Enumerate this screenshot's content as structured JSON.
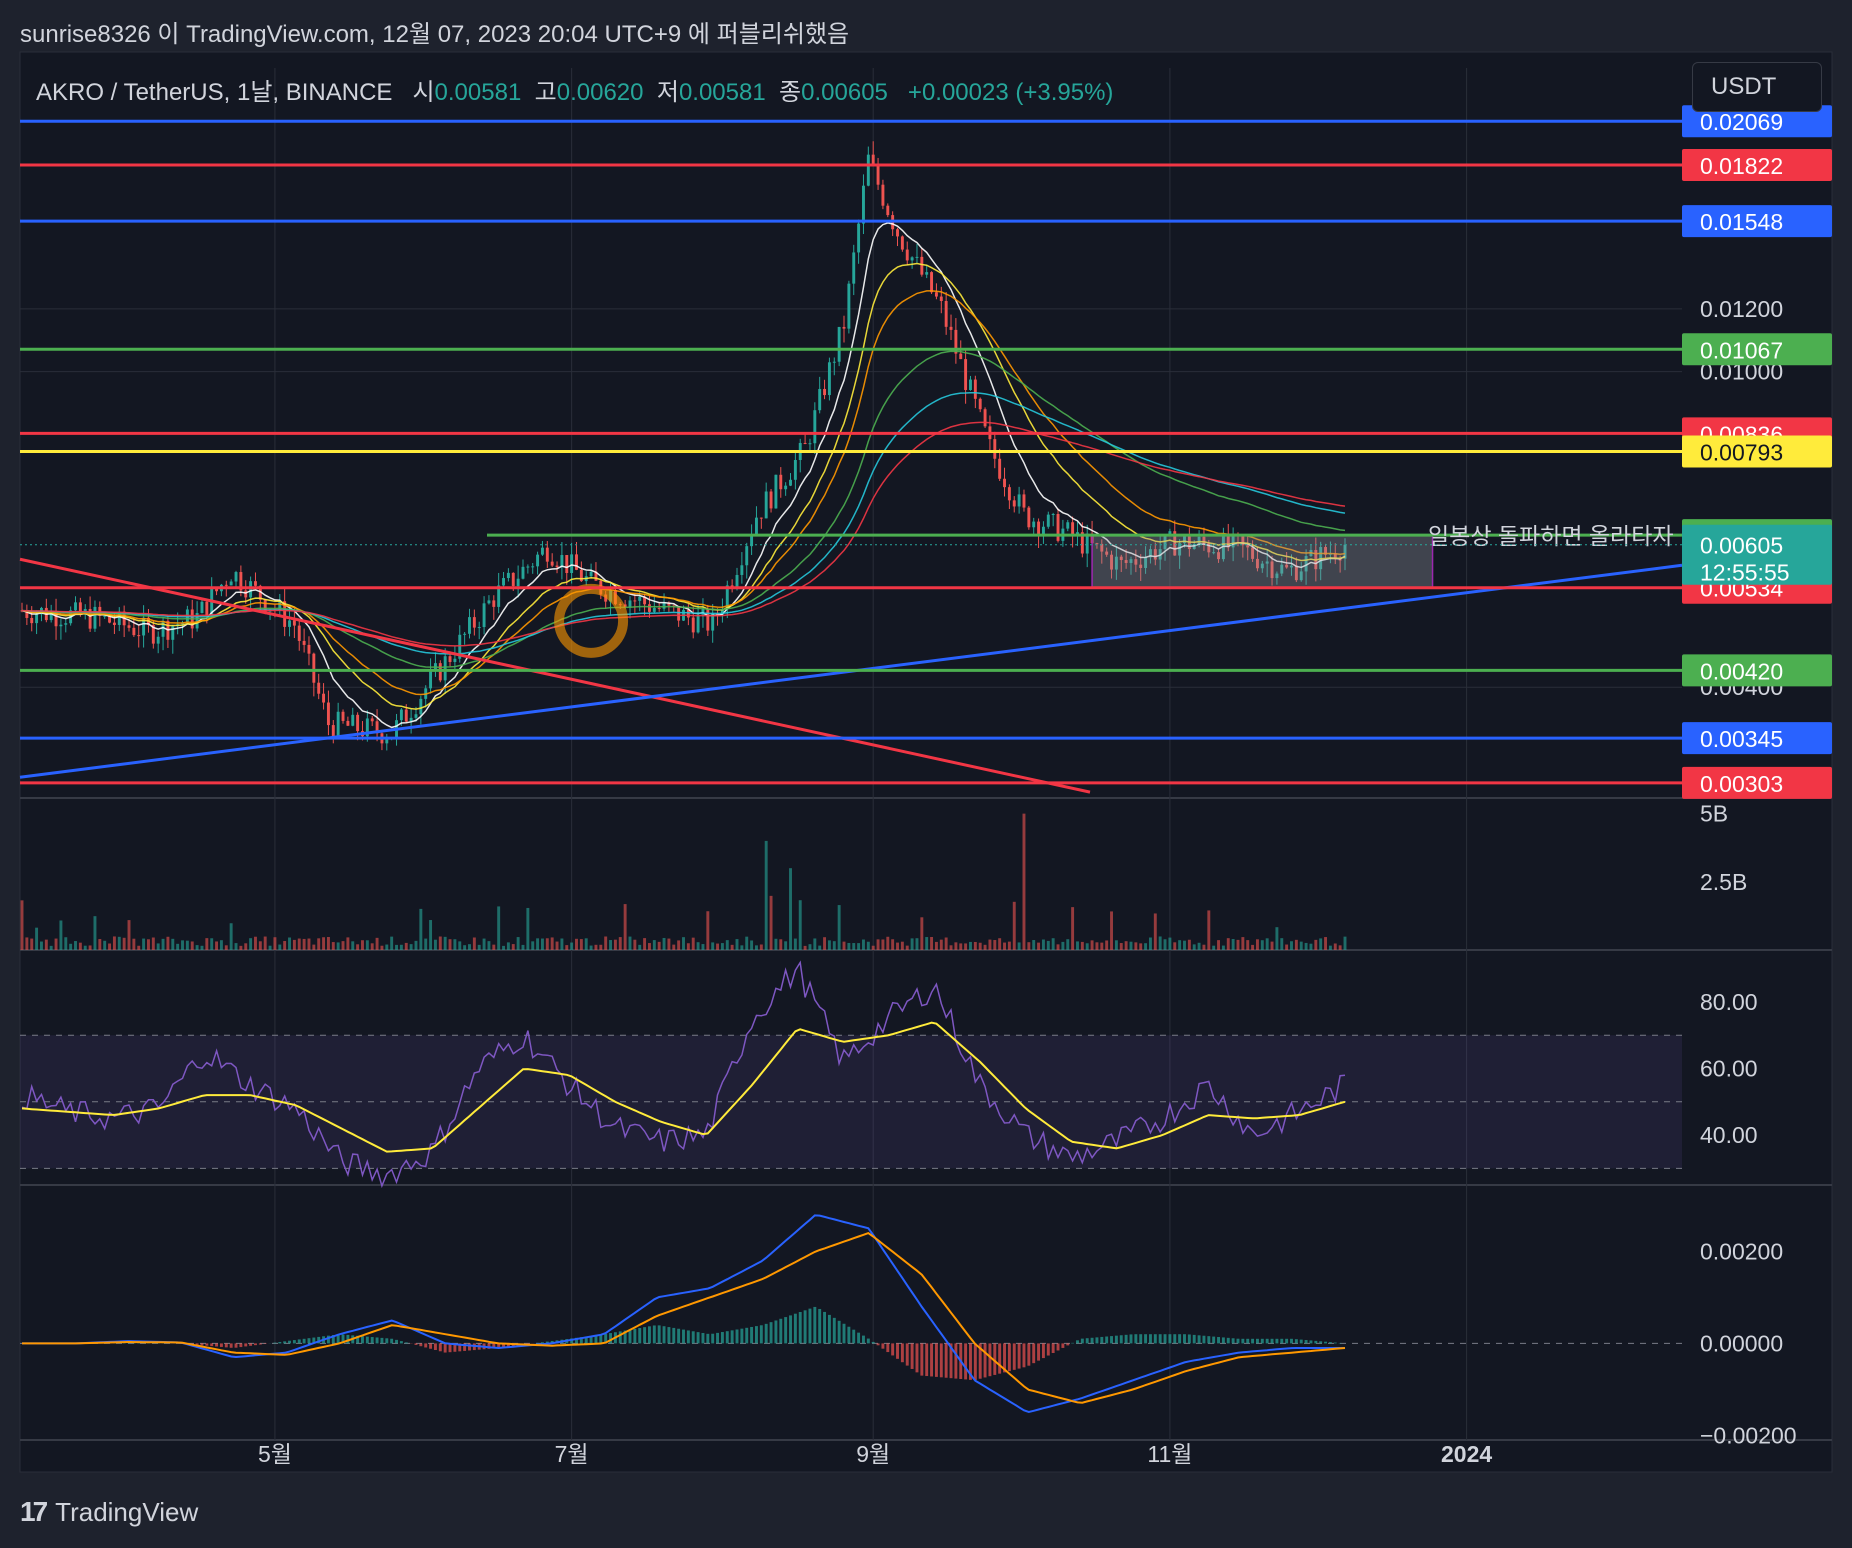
{
  "header": {
    "publish_text": "sunrise8326 이 TradingView.com, 12월 07, 2023 20:04 UTC+9 에 퍼블리쉬했음",
    "symbol": "AKRO / TetherUS, 1날, BINANCE",
    "open_label": "시",
    "open_value": "0.00581",
    "high_label": "고",
    "high_value": "0.00620",
    "low_label": "저",
    "low_value": "0.00581",
    "close_label": "종",
    "close_value": "0.00605",
    "change": "+0.00023 (+3.95%)",
    "currency_button": "USDT"
  },
  "footer": {
    "brand": "TradingView"
  },
  "colors": {
    "background": "#131722",
    "panel": "#1e222d",
    "grid": "#2a2e39",
    "up": "#26a69a",
    "down": "#ef5350",
    "red_line": "#f23645",
    "blue_line": "#2962ff",
    "green_line": "#4caf50",
    "yellow_line": "#ffeb3b"
  },
  "chart_data": [
    {
      "type": "candlestick",
      "panel": "price",
      "scale": "log",
      "ylim": [
        0.0029,
        0.0215
      ],
      "x_ticks": [
        "5월",
        "7월",
        "9월",
        "11월",
        "2024"
      ],
      "y_ticks": [
        "0.01200",
        "0.01000",
        "0.00400"
      ],
      "current_price": "0.00605",
      "countdown": "12:55:55",
      "horizontal_levels": [
        {
          "value": 0.02069,
          "label": "0.02069",
          "color": "#2962ff"
        },
        {
          "value": 0.01822,
          "label": "0.01822",
          "color": "#f23645"
        },
        {
          "value": 0.01548,
          "label": "0.01548",
          "color": "#2962ff"
        },
        {
          "value": 0.01067,
          "label": "0.01067",
          "color": "#4caf50"
        },
        {
          "value": 0.00836,
          "label": "0.00836",
          "color": "#f23645"
        },
        {
          "value": 0.00793,
          "label": "0.00793",
          "color": "#ffeb3b"
        },
        {
          "value": 0.00622,
          "label": "0.00622",
          "color": "#4caf50"
        },
        {
          "value": 0.00534,
          "label": "0.00534",
          "color": "#f23645"
        },
        {
          "value": 0.0042,
          "label": "0.00420",
          "color": "#4caf50"
        },
        {
          "value": 0.00345,
          "label": "0.00345",
          "color": "#2962ff"
        },
        {
          "value": 0.00303,
          "label": "0.00303",
          "color": "#f23645"
        }
      ],
      "annotation": "일봉상 돌파하면 올라타자",
      "close_path": [
        {
          "date": "2023-03-10",
          "close": 0.005
        },
        {
          "date": "2023-03-25",
          "close": 0.0049
        },
        {
          "date": "2023-04-05",
          "close": 0.0047
        },
        {
          "date": "2023-04-15",
          "close": 0.0049
        },
        {
          "date": "2023-04-22",
          "close": 0.0056
        },
        {
          "date": "2023-05-05",
          "close": 0.0048
        },
        {
          "date": "2023-05-12",
          "close": 0.0036
        },
        {
          "date": "2023-05-25",
          "close": 0.0035
        },
        {
          "date": "2023-06-05",
          "close": 0.0043
        },
        {
          "date": "2023-06-15",
          "close": 0.0052
        },
        {
          "date": "2023-06-26",
          "close": 0.006
        },
        {
          "date": "2023-07-05",
          "close": 0.0054
        },
        {
          "date": "2023-07-20",
          "close": 0.005
        },
        {
          "date": "2023-07-30",
          "close": 0.0048
        },
        {
          "date": "2023-08-08",
          "close": 0.0066
        },
        {
          "date": "2023-08-18",
          "close": 0.008
        },
        {
          "date": "2023-08-26",
          "close": 0.0115
        },
        {
          "date": "2023-08-31",
          "close": 0.0185
        },
        {
          "date": "2023-09-06",
          "close": 0.015
        },
        {
          "date": "2023-09-15",
          "close": 0.012
        },
        {
          "date": "2023-09-25",
          "close": 0.008
        },
        {
          "date": "2023-10-02",
          "close": 0.0066
        },
        {
          "date": "2023-10-10",
          "close": 0.0063
        },
        {
          "date": "2023-10-22",
          "close": 0.0057
        },
        {
          "date": "2023-11-02",
          "close": 0.0061
        },
        {
          "date": "2023-11-15",
          "close": 0.006
        },
        {
          "date": "2023-11-25",
          "close": 0.0056
        },
        {
          "date": "2023-12-07",
          "close": 0.00605
        }
      ]
    },
    {
      "type": "bar",
      "panel": "volume",
      "y_ticks": [
        "5B",
        "2.5B"
      ],
      "ylim": [
        0,
        5.5
      ],
      "unit": "B",
      "spikes": [
        {
          "date": "2023-08-10",
          "value": 4.0
        },
        {
          "date": "2023-08-15",
          "value": 3.0
        },
        {
          "date": "2023-10-02",
          "value": 5.0
        }
      ]
    },
    {
      "type": "line",
      "panel": "rsi",
      "ylim": [
        25,
        95
      ],
      "y_ticks": [
        "80.00",
        "60.00",
        "40.00"
      ],
      "bands": [
        70,
        50,
        30
      ],
      "series": [
        {
          "color": "#7e57c2",
          "values": [
            52,
            47,
            45,
            48,
            65,
            55,
            48,
            32,
            28,
            35,
            60,
            70,
            55,
            42,
            38,
            40,
            75,
            90,
            62,
            75,
            85,
            55,
            40,
            33,
            38,
            45,
            55,
            40,
            47,
            55
          ]
        },
        {
          "color": "#ffeb3b",
          "values": [
            48,
            47,
            46,
            48,
            52,
            52,
            49,
            42,
            35,
            36,
            48,
            60,
            58,
            50,
            44,
            40,
            55,
            72,
            68,
            70,
            74,
            62,
            48,
            38,
            36,
            40,
            46,
            45,
            46,
            50
          ]
        }
      ]
    },
    {
      "type": "line",
      "panel": "macd",
      "ylim": [
        -0.0021,
        0.0034
      ],
      "y_ticks": [
        "0.00200",
        "0.00000",
        "-0.00200"
      ],
      "series": [
        {
          "color": "#2962ff",
          "values": [
            0.0,
            0.0,
            5e-05,
            2e-05,
            -0.0003,
            -0.0002,
            0.0002,
            0.0005,
            0.0,
            -0.0001,
            0.0,
            0.0002,
            0.001,
            0.0012,
            0.0018,
            0.0028,
            0.0025,
            0.0008,
            -0.0008,
            -0.0015,
            -0.0012,
            -0.0008,
            -0.0004,
            -0.0002,
            -0.0001,
            -0.0001
          ]
        },
        {
          "color": "#ff9800",
          "values": [
            0.0,
            0.0,
            3e-05,
            2e-05,
            -0.0002,
            -0.00025,
            0.0,
            0.0004,
            0.0002,
            0.0,
            -5e-05,
            0.0,
            0.0006,
            0.001,
            0.0014,
            0.002,
            0.0024,
            0.0015,
            0.0,
            -0.001,
            -0.0013,
            -0.001,
            -0.0006,
            -0.0003,
            -0.0002,
            -0.0001
          ]
        }
      ]
    }
  ]
}
